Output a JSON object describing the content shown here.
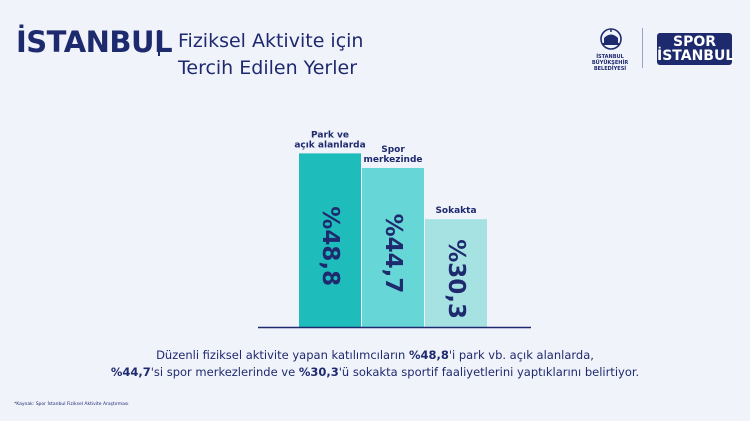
{
  "header": {
    "brand": "İSTANBUL",
    "title_line1": "Fiziksel Aktivite için",
    "title_line2": "Tercih Edilen Yerler"
  },
  "logos": {
    "ibb_line1": "İSTANBUL",
    "ibb_line2": "BÜYÜKŞEHİR",
    "ibb_line3": "BELEDİYESİ",
    "spor_line1": "SPOR",
    "spor_line2": "İSTANBUL"
  },
  "chart_data": {
    "type": "bar",
    "categories": [
      "Park ve açık alanlarda",
      "Spor merkezinde",
      "Sokakta"
    ],
    "category_lines": [
      [
        "Park ve",
        "açık alanlarda"
      ],
      [
        "Spor",
        "merkezinde"
      ],
      [
        "Sokakta"
      ]
    ],
    "values": [
      48.8,
      44.7,
      30.3
    ],
    "value_labels": [
      "%48,8",
      "%44,7",
      "%30,3"
    ],
    "colors": [
      "#1fbcbc",
      "#66d6d6",
      "#a6e2e2"
    ],
    "title": "",
    "xlabel": "",
    "ylabel": "",
    "ylim": [
      0,
      52
    ],
    "grid": false,
    "legend": "none"
  },
  "description": {
    "line1_pre": "Düzenli fiziksel aktivite yapan katılımcıların ",
    "line1_bold": "%48,8",
    "line1_post": "'i park vb. açık alanlarda,",
    "line2_bold1": "%44,7",
    "line2_mid1": "'si spor merkezlerinde ve ",
    "line2_bold2": "%30,3",
    "line2_post": "'ü sokakta sportif faaliyetlerini yaptıklarını belirtiyor."
  },
  "source": "*Kaynak: Spor İstanbul Fiziksel Aktivite Araştırması"
}
